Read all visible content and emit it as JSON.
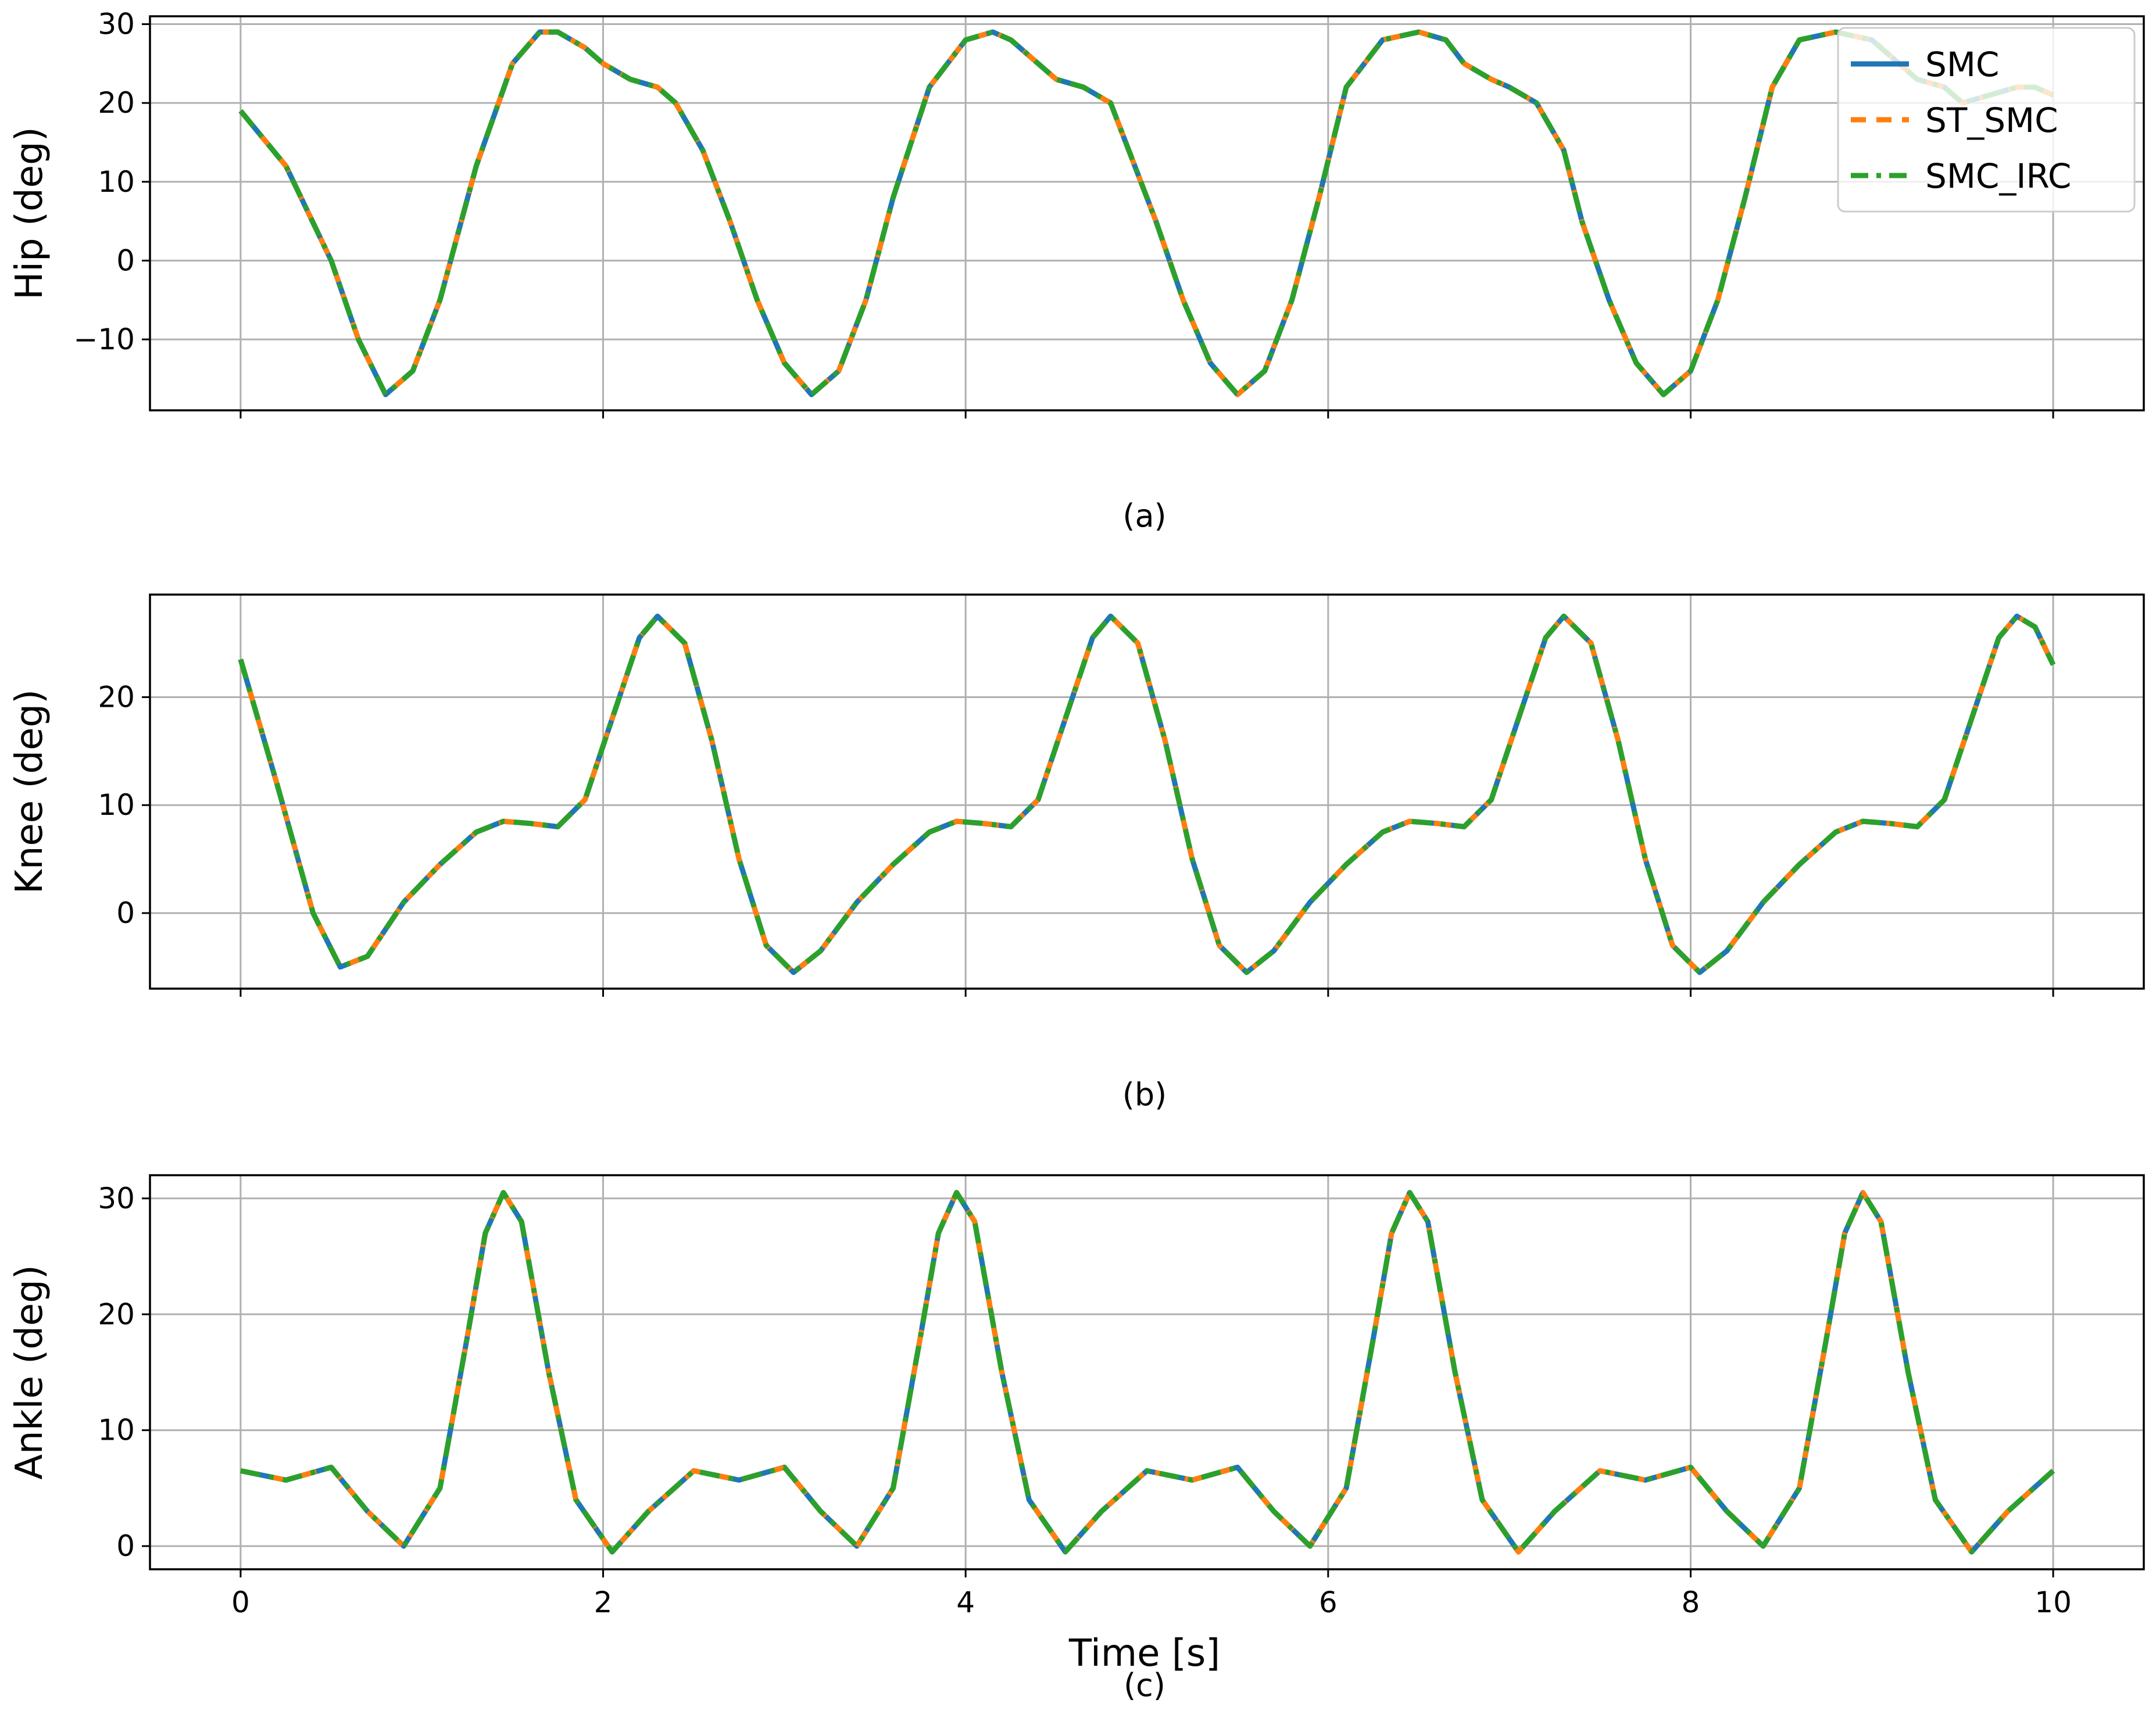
{
  "chart_data": [
    {
      "type": "line",
      "caption": "(a)",
      "xlabel": "",
      "ylabel": "Hip (deg)",
      "xlim": [
        -0.5,
        10.5
      ],
      "ylim": [
        -19,
        31
      ],
      "xticks": [
        0,
        2,
        4,
        6,
        8,
        10
      ],
      "yticks": [
        -10,
        0,
        10,
        20,
        30
      ],
      "show_xtick_labels": false,
      "grid": true,
      "legend": {
        "placement": "top-right",
        "entries": [
          "SMC",
          "ST_SMC",
          "SMC_IRC"
        ]
      },
      "x": [
        0,
        0.25,
        0.5,
        0.65,
        0.8,
        0.95,
        1.1,
        1.3,
        1.5,
        1.65,
        1.75,
        1.9,
        2.0,
        2.15,
        2.3,
        2.4,
        2.55,
        2.7,
        2.85,
        3.0,
        3.15,
        3.3,
        3.45,
        3.6,
        3.8,
        4.0,
        4.15,
        4.25,
        4.4,
        4.5,
        4.65,
        4.8,
        4.9,
        5.05,
        5.2,
        5.35,
        5.5,
        5.65,
        5.8,
        5.95,
        6.1,
        6.3,
        6.5,
        6.65,
        6.75,
        6.9,
        7.0,
        7.15,
        7.3,
        7.4,
        7.55,
        7.7,
        7.85,
        8.0,
        8.15,
        8.3,
        8.45,
        8.6,
        8.8,
        9.0,
        9.15,
        9.25,
        9.4,
        9.5,
        9.65,
        9.8,
        9.9,
        10.0
      ],
      "series": [
        {
          "name": "SMC",
          "color": "#1f77b4",
          "style": "solid",
          "y": [
            19,
            12,
            0,
            -10,
            -17,
            -14,
            -5,
            12,
            25,
            29,
            29,
            27,
            25,
            23,
            22,
            20,
            14,
            5,
            -5,
            -13,
            -17,
            -14,
            -5,
            8,
            22,
            28,
            29,
            28,
            25,
            23,
            22,
            20,
            14,
            5,
            -5,
            -13,
            -17,
            -14,
            -5,
            8,
            22,
            28,
            29,
            28,
            25,
            23,
            22,
            20,
            14,
            5,
            -5,
            -13,
            -17,
            -14,
            -5,
            8,
            22,
            28,
            29,
            28,
            25,
            23,
            22,
            20,
            21,
            22,
            22,
            21
          ]
        },
        {
          "name": "ST_SMC",
          "color": "#ff7f0e",
          "style": "dashed",
          "y": [
            19,
            12,
            0,
            -10,
            -17,
            -14,
            -5,
            12,
            25,
            29,
            29,
            27,
            25,
            23,
            22,
            20,
            14,
            5,
            -5,
            -13,
            -17,
            -14,
            -5,
            8,
            22,
            28,
            29,
            28,
            25,
            23,
            22,
            20,
            14,
            5,
            -5,
            -13,
            -17,
            -14,
            -5,
            8,
            22,
            28,
            29,
            28,
            25,
            23,
            22,
            20,
            14,
            5,
            -5,
            -13,
            -17,
            -14,
            -5,
            8,
            22,
            28,
            29,
            28,
            25,
            23,
            22,
            20,
            21,
            22,
            22,
            21
          ]
        },
        {
          "name": "SMC_IRC",
          "color": "#2ca02c",
          "style": "dashdot",
          "y": [
            19,
            12,
            0,
            -10,
            -17,
            -14,
            -5,
            12,
            25,
            29,
            29,
            27,
            25,
            23,
            22,
            20,
            14,
            5,
            -5,
            -13,
            -17,
            -14,
            -5,
            8,
            22,
            28,
            29,
            28,
            25,
            23,
            22,
            20,
            14,
            5,
            -5,
            -13,
            -17,
            -14,
            -5,
            8,
            22,
            28,
            29,
            28,
            25,
            23,
            22,
            20,
            14,
            5,
            -5,
            -13,
            -17,
            -14,
            -5,
            8,
            22,
            28,
            29,
            28,
            25,
            23,
            22,
            20,
            21,
            22,
            22,
            21
          ]
        }
      ]
    },
    {
      "type": "line",
      "caption": "(b)",
      "xlabel": "",
      "ylabel": "Knee (deg)",
      "xlim": [
        -0.5,
        10.5
      ],
      "ylim": [
        -7,
        29.5
      ],
      "xticks": [
        0,
        2,
        4,
        6,
        8,
        10
      ],
      "yticks": [
        0,
        10,
        20
      ],
      "show_xtick_labels": false,
      "grid": true,
      "x": [
        0,
        0.2,
        0.4,
        0.55,
        0.7,
        0.9,
        1.1,
        1.3,
        1.45,
        1.6,
        1.75,
        1.9,
        2.05,
        2.2,
        2.3,
        2.45,
        2.6,
        2.75,
        2.9,
        3.05,
        3.2,
        3.4,
        3.6,
        3.8,
        3.95,
        4.1,
        4.25,
        4.4,
        4.55,
        4.7,
        4.8,
        4.95,
        5.1,
        5.25,
        5.4,
        5.55,
        5.7,
        5.9,
        6.1,
        6.3,
        6.45,
        6.6,
        6.75,
        6.9,
        7.05,
        7.2,
        7.3,
        7.45,
        7.6,
        7.75,
        7.9,
        8.05,
        8.2,
        8.4,
        8.6,
        8.8,
        8.95,
        9.1,
        9.25,
        9.4,
        9.55,
        9.7,
        9.8,
        9.9,
        10.0
      ],
      "series": [
        {
          "name": "SMC",
          "color": "#1f77b4",
          "style": "solid",
          "y": [
            23.5,
            12,
            0,
            -5,
            -4,
            1,
            4.5,
            7.5,
            8.5,
            8.3,
            8,
            10.5,
            18,
            25.5,
            27.5,
            25,
            16,
            5,
            -3,
            -5.5,
            -3.5,
            1,
            4.5,
            7.5,
            8.5,
            8.3,
            8,
            10.5,
            18,
            25.5,
            27.5,
            25,
            16,
            5,
            -3,
            -5.5,
            -3.5,
            1,
            4.5,
            7.5,
            8.5,
            8.3,
            8,
            10.5,
            18,
            25.5,
            27.5,
            25,
            16,
            5,
            -3,
            -5.5,
            -3.5,
            1,
            4.5,
            7.5,
            8.5,
            8.3,
            8,
            10.5,
            18,
            25.5,
            27.5,
            26.5,
            23
          ]
        },
        {
          "name": "ST_SMC",
          "color": "#ff7f0e",
          "style": "dashed",
          "y": [
            23.5,
            12,
            0,
            -5,
            -4,
            1,
            4.5,
            7.5,
            8.5,
            8.3,
            8,
            10.5,
            18,
            25.5,
            27.5,
            25,
            16,
            5,
            -3,
            -5.5,
            -3.5,
            1,
            4.5,
            7.5,
            8.5,
            8.3,
            8,
            10.5,
            18,
            25.5,
            27.5,
            25,
            16,
            5,
            -3,
            -5.5,
            -3.5,
            1,
            4.5,
            7.5,
            8.5,
            8.3,
            8,
            10.5,
            18,
            25.5,
            27.5,
            25,
            16,
            5,
            -3,
            -5.5,
            -3.5,
            1,
            4.5,
            7.5,
            8.5,
            8.3,
            8,
            10.5,
            18,
            25.5,
            27.5,
            26.5,
            23
          ]
        },
        {
          "name": "SMC_IRC",
          "color": "#2ca02c",
          "style": "dashdot",
          "y": [
            23.5,
            12,
            0,
            -5,
            -4,
            1,
            4.5,
            7.5,
            8.5,
            8.3,
            8,
            10.5,
            18,
            25.5,
            27.5,
            25,
            16,
            5,
            -3,
            -5.5,
            -3.5,
            1,
            4.5,
            7.5,
            8.5,
            8.3,
            8,
            10.5,
            18,
            25.5,
            27.5,
            25,
            16,
            5,
            -3,
            -5.5,
            -3.5,
            1,
            4.5,
            7.5,
            8.5,
            8.3,
            8,
            10.5,
            18,
            25.5,
            27.5,
            25,
            16,
            5,
            -3,
            -5.5,
            -3.5,
            1,
            4.5,
            7.5,
            8.5,
            8.3,
            8,
            10.5,
            18,
            25.5,
            27.5,
            26.5,
            23
          ]
        }
      ]
    },
    {
      "type": "line",
      "caption": "(c)",
      "xlabel": "Time [s]",
      "ylabel": "Ankle (deg)",
      "xlim": [
        -0.5,
        10.5
      ],
      "ylim": [
        -2,
        32
      ],
      "xticks": [
        0,
        2,
        4,
        6,
        8,
        10
      ],
      "yticks": [
        0,
        10,
        20,
        30
      ],
      "show_xtick_labels": true,
      "grid": true,
      "x": [
        0,
        0.25,
        0.5,
        0.7,
        0.9,
        1.1,
        1.25,
        1.35,
        1.45,
        1.55,
        1.7,
        1.85,
        2.05,
        2.25,
        2.5,
        2.75,
        3.0,
        3.2,
        3.4,
        3.6,
        3.75,
        3.85,
        3.95,
        4.05,
        4.2,
        4.35,
        4.55,
        4.75,
        5.0,
        5.25,
        5.5,
        5.7,
        5.9,
        6.1,
        6.25,
        6.35,
        6.45,
        6.55,
        6.7,
        6.85,
        7.05,
        7.25,
        7.5,
        7.75,
        8.0,
        8.2,
        8.4,
        8.6,
        8.75,
        8.85,
        8.95,
        9.05,
        9.2,
        9.35,
        9.55,
        9.75,
        10.0
      ],
      "series": [
        {
          "name": "SMC",
          "color": "#1f77b4",
          "style": "solid",
          "y": [
            6.5,
            5.7,
            6.8,
            3,
            0,
            5,
            18,
            27,
            30.5,
            28,
            15,
            4,
            -0.5,
            3,
            6.5,
            5.7,
            6.8,
            3,
            0,
            5,
            18,
            27,
            30.5,
            28,
            15,
            4,
            -0.5,
            3,
            6.5,
            5.7,
            6.8,
            3,
            0,
            5,
            18,
            27,
            30.5,
            28,
            15,
            4,
            -0.5,
            3,
            6.5,
            5.7,
            6.8,
            3,
            0,
            5,
            18,
            27,
            30.5,
            28,
            15,
            4,
            -0.5,
            3,
            6.5
          ]
        },
        {
          "name": "ST_SMC",
          "color": "#ff7f0e",
          "style": "dashed",
          "y": [
            6.5,
            5.7,
            6.8,
            3,
            0,
            5,
            18,
            27,
            30.5,
            28,
            15,
            4,
            -0.5,
            3,
            6.5,
            5.7,
            6.8,
            3,
            0,
            5,
            18,
            27,
            30.5,
            28,
            15,
            4,
            -0.5,
            3,
            6.5,
            5.7,
            6.8,
            3,
            0,
            5,
            18,
            27,
            30.5,
            28,
            15,
            4,
            -0.5,
            3,
            6.5,
            5.7,
            6.8,
            3,
            0,
            5,
            18,
            27,
            30.5,
            28,
            15,
            4,
            -0.5,
            3,
            6.5
          ]
        },
        {
          "name": "SMC_IRC",
          "color": "#2ca02c",
          "style": "dashdot",
          "y": [
            6.5,
            5.7,
            6.8,
            3,
            0,
            5,
            18,
            27,
            30.5,
            28,
            15,
            4,
            -0.5,
            3,
            6.5,
            5.7,
            6.8,
            3,
            0,
            5,
            18,
            27,
            30.5,
            28,
            15,
            4,
            -0.5,
            3,
            6.5,
            5.7,
            6.8,
            3,
            0,
            5,
            18,
            27,
            30.5,
            28,
            15,
            4,
            -0.5,
            3,
            6.5,
            5.7,
            6.8,
            3,
            0,
            5,
            18,
            27,
            30.5,
            28,
            15,
            4,
            -0.5,
            3,
            6.5
          ]
        }
      ]
    }
  ]
}
